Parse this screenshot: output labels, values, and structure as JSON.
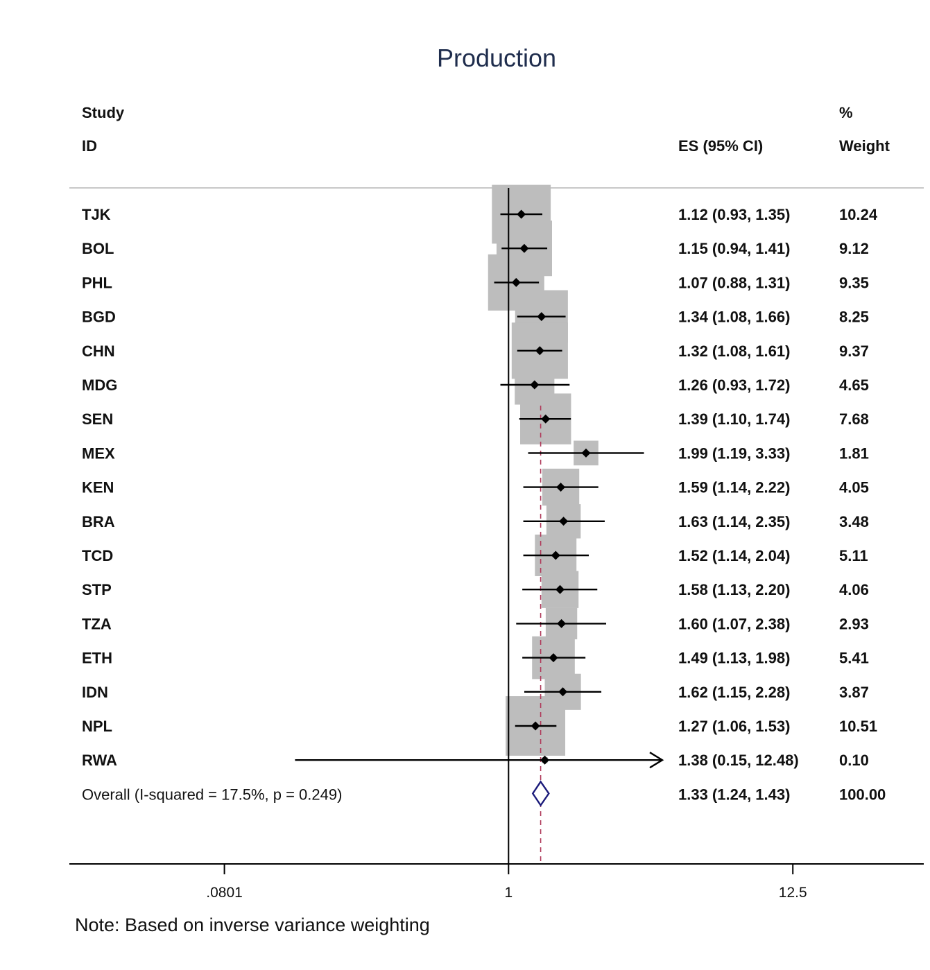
{
  "chart_data": {
    "type": "forest",
    "title": "Production",
    "headers": {
      "study_line1": "Study",
      "study_line2": "ID",
      "es": "ES (95% CI)",
      "weight_line1": "%",
      "weight_line2": "Weight"
    },
    "scale": "log",
    "x_ticks": [
      {
        "value": 0.0801,
        "label": ".0801"
      },
      {
        "value": 1,
        "label": "1"
      },
      {
        "value": 12.5,
        "label": "12.5"
      }
    ],
    "x_range": [
      0.0202,
      40
    ],
    "null_line": 1,
    "studies": [
      {
        "id": "TJK",
        "es": 1.12,
        "lo": 0.93,
        "hi": 1.35,
        "ci_text": "1.12 (0.93, 1.35)",
        "weight": 10.24,
        "weight_text": "10.24"
      },
      {
        "id": "BOL",
        "es": 1.15,
        "lo": 0.94,
        "hi": 1.41,
        "ci_text": "1.15 (0.94, 1.41)",
        "weight": 9.12,
        "weight_text": "9.12"
      },
      {
        "id": "PHL",
        "es": 1.07,
        "lo": 0.88,
        "hi": 1.31,
        "ci_text": "1.07 (0.88, 1.31)",
        "weight": 9.35,
        "weight_text": "9.35"
      },
      {
        "id": "BGD",
        "es": 1.34,
        "lo": 1.08,
        "hi": 1.66,
        "ci_text": "1.34 (1.08, 1.66)",
        "weight": 8.25,
        "weight_text": "8.25"
      },
      {
        "id": "CHN",
        "es": 1.32,
        "lo": 1.08,
        "hi": 1.61,
        "ci_text": "1.32 (1.08, 1.61)",
        "weight": 9.37,
        "weight_text": "9.37"
      },
      {
        "id": "MDG",
        "es": 1.26,
        "lo": 0.93,
        "hi": 1.72,
        "ci_text": "1.26 (0.93, 1.72)",
        "weight": 4.65,
        "weight_text": "4.65"
      },
      {
        "id": "SEN",
        "es": 1.39,
        "lo": 1.1,
        "hi": 1.74,
        "ci_text": "1.39 (1.10, 1.74)",
        "weight": 7.68,
        "weight_text": "7.68"
      },
      {
        "id": "MEX",
        "es": 1.99,
        "lo": 1.19,
        "hi": 3.33,
        "ci_text": "1.99 (1.19, 3.33)",
        "weight": 1.81,
        "weight_text": "1.81"
      },
      {
        "id": "KEN",
        "es": 1.59,
        "lo": 1.14,
        "hi": 2.22,
        "ci_text": "1.59 (1.14, 2.22)",
        "weight": 4.05,
        "weight_text": "4.05"
      },
      {
        "id": "BRA",
        "es": 1.63,
        "lo": 1.14,
        "hi": 2.35,
        "ci_text": "1.63 (1.14, 2.35)",
        "weight": 3.48,
        "weight_text": "3.48"
      },
      {
        "id": "TCD",
        "es": 1.52,
        "lo": 1.14,
        "hi": 2.04,
        "ci_text": "1.52 (1.14, 2.04)",
        "weight": 5.11,
        "weight_text": "5.11"
      },
      {
        "id": "STP",
        "es": 1.58,
        "lo": 1.13,
        "hi": 2.2,
        "ci_text": "1.58 (1.13, 2.20)",
        "weight": 4.06,
        "weight_text": "4.06"
      },
      {
        "id": "TZA",
        "es": 1.6,
        "lo": 1.07,
        "hi": 2.38,
        "ci_text": "1.60 (1.07, 2.38)",
        "weight": 2.93,
        "weight_text": "2.93"
      },
      {
        "id": "ETH",
        "es": 1.49,
        "lo": 1.13,
        "hi": 1.98,
        "ci_text": "1.49 (1.13, 1.98)",
        "weight": 5.41,
        "weight_text": "5.41"
      },
      {
        "id": "IDN",
        "es": 1.62,
        "lo": 1.15,
        "hi": 2.28,
        "ci_text": "1.62 (1.15, 2.28)",
        "weight": 3.87,
        "weight_text": "3.87"
      },
      {
        "id": "NPL",
        "es": 1.27,
        "lo": 1.06,
        "hi": 1.53,
        "ci_text": "1.27 (1.06, 1.53)",
        "weight": 10.51,
        "weight_text": "10.51"
      },
      {
        "id": "RWA",
        "es": 1.38,
        "lo": 0.15,
        "hi": 12.48,
        "ci_text": "1.38 (0.15, 12.48)",
        "weight": 0.1,
        "weight_text": "0.10"
      }
    ],
    "overall": {
      "label": "Overall  (I-squared = 17.5%, p = 0.249)",
      "es": 1.33,
      "lo": 1.24,
      "hi": 1.43,
      "ci_text": "1.33 (1.24, 1.43)",
      "weight_text": "100.00"
    },
    "note": "Note: Based on inverse variance weighting",
    "colors": {
      "box": "#bdbdbd",
      "marker": "#000000",
      "diamond": "#1a1a7a",
      "overall_line": "#b03a5b",
      "title": "#1f2d4d"
    }
  }
}
